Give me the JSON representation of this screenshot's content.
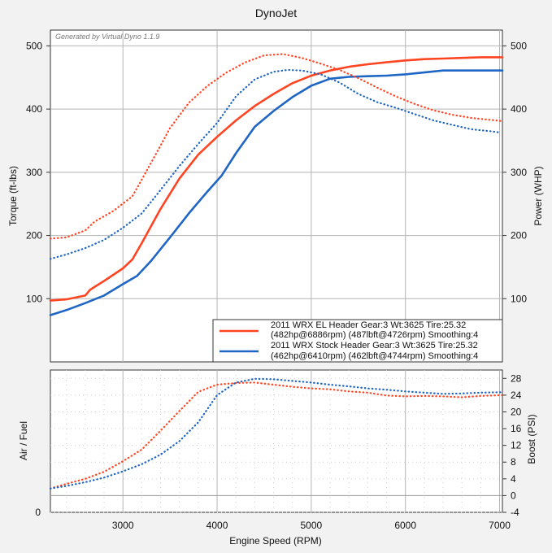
{
  "chart_data": [
    {
      "type": "line",
      "title": "DynoJet",
      "subtitle": "Generated by Virtual Dyno 1.1.9",
      "xlabel": "",
      "ylabel_left": "Torque (ft-lbs)",
      "ylabel_right": "Power (WHP)",
      "xlim": [
        2230,
        7030
      ],
      "ylim": [
        0,
        525
      ],
      "yticks": [
        100,
        200,
        300,
        400,
        500
      ],
      "xticks": [
        3000,
        4000,
        5000,
        6000,
        7000
      ],
      "grid": true,
      "legend_position": "bottom-right",
      "legend": [
        {
          "line1": "2011 WRX EL Header Gear:3 Wt:3625 Tire:25.32",
          "line2": "(482hp@6886rpm) (487lbft@4726rpm) Smoothing:4",
          "color": "#ff4422"
        },
        {
          "line1": "2011 WRX Stock Header Gear:3 Wt:3625 Tire:25.32",
          "line2": "(462hp@6410rpm) (462lbft@4744rpm) Smoothing:4",
          "color": "#1f66c4"
        }
      ],
      "series": [
        {
          "kind": "power",
          "style": "solid",
          "color": "#ff4422",
          "x": [
            2230,
            2400,
            2600,
            2650,
            2800,
            3000,
            3100,
            3200,
            3400,
            3600,
            3800,
            4000,
            4200,
            4400,
            4600,
            4800,
            5000,
            5200,
            5400,
            5600,
            5800,
            6000,
            6200,
            6400,
            6600,
            6800,
            7030
          ],
          "y": [
            97,
            99,
            105,
            114,
            128,
            148,
            162,
            188,
            242,
            290,
            328,
            356,
            382,
            405,
            424,
            441,
            453,
            461,
            467,
            471,
            474,
            477,
            479,
            480,
            481,
            482,
            482
          ]
        },
        {
          "kind": "power",
          "style": "solid",
          "color": "#1f66c4",
          "x": [
            2230,
            2400,
            2600,
            2800,
            3000,
            3150,
            3300,
            3500,
            3700,
            3900,
            4050,
            4200,
            4400,
            4600,
            4800,
            5000,
            5200,
            5400,
            5600,
            5800,
            6000,
            6200,
            6400,
            6600,
            6800,
            7030
          ],
          "y": [
            74,
            82,
            93,
            105,
            123,
            136,
            160,
            197,
            235,
            270,
            295,
            330,
            372,
            397,
            419,
            437,
            448,
            451,
            452,
            453,
            455,
            458,
            461,
            461,
            461,
            461
          ]
        },
        {
          "kind": "torque",
          "style": "dotted",
          "color": "#ff4422",
          "x": [
            2230,
            2400,
            2600,
            2700,
            2900,
            3100,
            3300,
            3500,
            3700,
            3900,
            4100,
            4300,
            4500,
            4700,
            4900,
            5100,
            5300,
            5500,
            5700,
            5900,
            6100,
            6300,
            6500,
            6700,
            6900,
            7030
          ],
          "y": [
            195,
            197,
            208,
            222,
            239,
            262,
            315,
            370,
            410,
            437,
            458,
            474,
            485,
            487,
            481,
            472,
            462,
            449,
            434,
            420,
            408,
            398,
            391,
            386,
            383,
            381
          ]
        },
        {
          "kind": "torque",
          "style": "dotted",
          "color": "#1f66c4",
          "x": [
            2230,
            2400,
            2600,
            2800,
            3000,
            3200,
            3400,
            3600,
            3800,
            4000,
            4200,
            4400,
            4600,
            4750,
            4900,
            5100,
            5300,
            5500,
            5700,
            5900,
            6100,
            6300,
            6500,
            6700,
            6900,
            7000
          ],
          "y": [
            163,
            170,
            180,
            193,
            212,
            235,
            272,
            310,
            345,
            378,
            420,
            447,
            459,
            462,
            461,
            455,
            442,
            424,
            411,
            402,
            392,
            382,
            375,
            368,
            365,
            363
          ]
        }
      ]
    },
    {
      "type": "line",
      "xlabel": "Engine Speed (RPM)",
      "ylabel_left": "Air / Fuel",
      "ylabel_right": "Boost (PSI)",
      "xlim": [
        2230,
        7030
      ],
      "ylim": [
        -4,
        30
      ],
      "left_ticks": [
        "0"
      ],
      "yticks": [
        -4,
        0,
        4,
        8,
        12,
        16,
        20,
        24,
        28
      ],
      "xticks": [
        3000,
        4000,
        5000,
        6000,
        7000
      ],
      "grid": true,
      "series": [
        {
          "kind": "boost",
          "style": "dotted",
          "color": "#ff4422",
          "x": [
            2230,
            2400,
            2600,
            2800,
            3000,
            3200,
            3400,
            3600,
            3800,
            4000,
            4200,
            4400,
            4600,
            4800,
            5000,
            5200,
            5400,
            5600,
            5800,
            6000,
            6200,
            6400,
            6600,
            6800,
            7030
          ],
          "y": [
            1.7,
            2.8,
            4.0,
            5.7,
            8.2,
            11.0,
            15.5,
            20.2,
            24.8,
            26.5,
            26.9,
            27.0,
            26.5,
            26.0,
            25.6,
            25.4,
            24.9,
            24.6,
            23.9,
            23.7,
            23.8,
            23.7,
            23.5,
            23.8,
            24.0
          ]
        },
        {
          "kind": "boost",
          "style": "dotted",
          "color": "#1f66c4",
          "x": [
            2230,
            2400,
            2600,
            2800,
            3000,
            3200,
            3400,
            3600,
            3800,
            4000,
            4200,
            4400,
            4600,
            4800,
            5000,
            5200,
            5400,
            5600,
            5800,
            6000,
            6200,
            6400,
            6600,
            6800,
            7030
          ],
          "y": [
            1.7,
            2.3,
            3.2,
            4.3,
            5.8,
            7.5,
            9.8,
            13.0,
            17.5,
            24.0,
            27.0,
            27.9,
            27.8,
            27.4,
            27.0,
            26.5,
            26.1,
            25.6,
            25.3,
            24.9,
            24.6,
            24.3,
            24.4,
            24.6,
            24.7
          ]
        }
      ]
    }
  ]
}
